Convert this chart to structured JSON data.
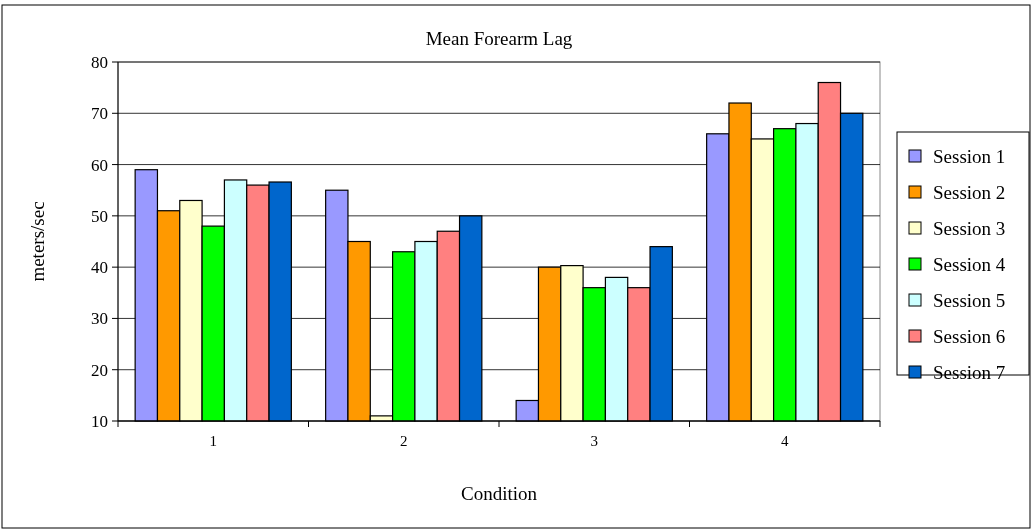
{
  "chart_data": {
    "type": "bar",
    "title": "Mean Forearm Lag",
    "xlabel": "Condition",
    "ylabel": "meters/sec",
    "categories": [
      "1",
      "2",
      "3",
      "4"
    ],
    "series": [
      {
        "name": "Session 1",
        "color": "#9999ff",
        "values": [
          59,
          55,
          14,
          66
        ]
      },
      {
        "name": "Session 2",
        "color": "#ff9900",
        "values": [
          51,
          45,
          40,
          72
        ]
      },
      {
        "name": "Session 3",
        "color": "#ffffcc",
        "values": [
          53,
          11,
          40.3,
          65
        ]
      },
      {
        "name": "Session 4",
        "color": "#00ff00",
        "values": [
          48,
          43,
          36,
          67
        ]
      },
      {
        "name": "Session 5",
        "color": "#ccffff",
        "values": [
          57,
          45,
          38,
          68
        ]
      },
      {
        "name": "Session 6",
        "color": "#ff8080",
        "values": [
          56,
          47,
          36,
          76
        ]
      },
      {
        "name": "Session 7",
        "color": "#0066cc",
        "values": [
          56.6,
          50,
          44,
          70
        ]
      }
    ],
    "ylim": [
      10,
      80
    ],
    "yticks": [
      10,
      20,
      30,
      40,
      50,
      60,
      70,
      80
    ],
    "grid": "y",
    "legend": "right"
  }
}
